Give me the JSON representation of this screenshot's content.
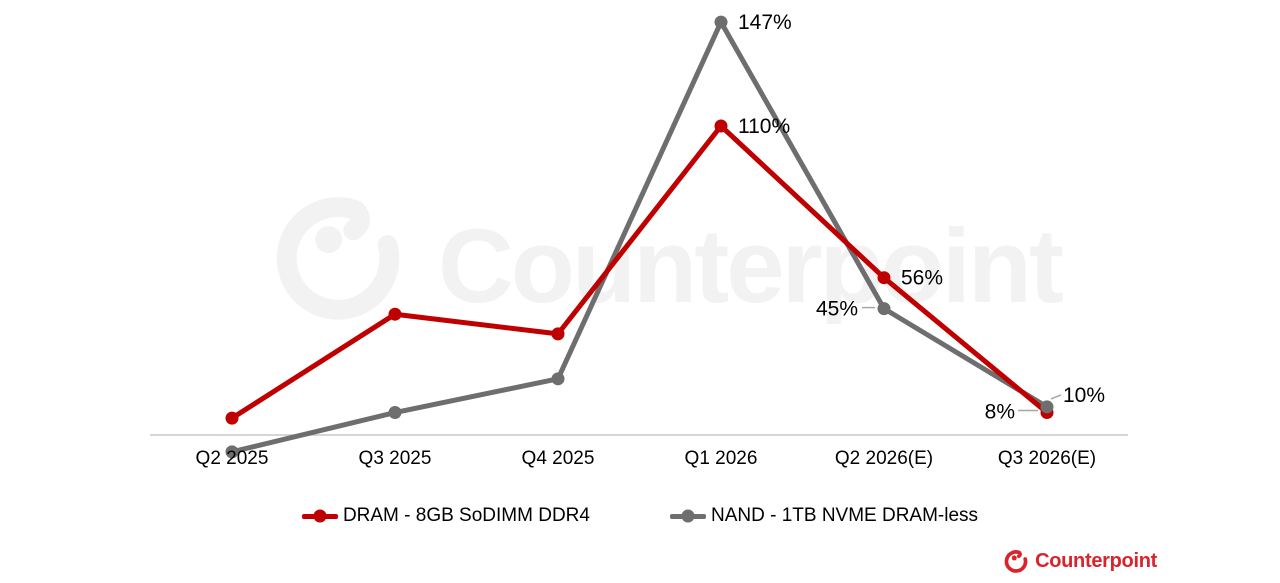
{
  "watermark": {
    "text": "Counterpoint"
  },
  "brand": {
    "text": "Counterpoint"
  },
  "chart_data": {
    "type": "line",
    "categories": [
      "Q2 2025",
      "Q3 2025",
      "Q4 2025",
      "Q1 2026",
      "Q2 2026(E)",
      "Q3 2026(E)"
    ],
    "series": [
      {
        "name": "DRAM - 8GB SoDIMM DDR4",
        "color": "#c00000",
        "values": [
          6,
          43,
          36,
          110,
          56,
          8
        ],
        "point_labels": [
          null,
          null,
          null,
          "110%",
          "56%",
          "8%"
        ]
      },
      {
        "name": "NAND - 1TB NVME DRAM-less",
        "color": "#6e6e6e",
        "values": [
          -6,
          8,
          20,
          147,
          45,
          10
        ],
        "point_labels": [
          null,
          null,
          null,
          "147%",
          "45%",
          "10%"
        ]
      }
    ],
    "ylim": [
      -10,
      155
    ],
    "grid": false,
    "legend_position": "bottom",
    "axis_color": "#c9c9c9",
    "label_color": "#000000",
    "leader_color": "#a6a6a6",
    "watermark_color": "#f2f2f2",
    "brand_color": "#d9242c"
  }
}
